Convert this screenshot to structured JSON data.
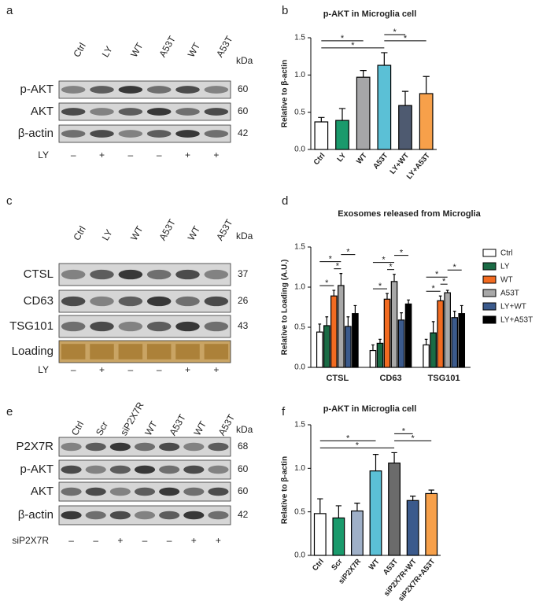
{
  "panel_labels": [
    "a",
    "b",
    "c",
    "d",
    "e",
    "f"
  ],
  "blots": [
    {
      "lanes": [
        "Ctrl",
        "LY",
        "WT",
        "A53T",
        "WT",
        "A53T"
      ],
      "kda_header": "kDa",
      "rows": [
        {
          "label": "p-AKT",
          "kda": 60
        },
        {
          "label": "AKT",
          "kda": 60
        },
        {
          "label": "β-actin",
          "kda": 42
        }
      ],
      "treatment": {
        "label": "LY",
        "signs": [
          "–",
          "+",
          "–",
          "–",
          "+",
          "+"
        ]
      }
    },
    {
      "lanes": [
        "Ctrl",
        "LY",
        "WT",
        "A53T",
        "WT",
        "A53T"
      ],
      "kda_header": "kDa",
      "rows": [
        {
          "label": "CTSL",
          "kda": 37
        },
        {
          "label": "CD63",
          "kda": 26
        },
        {
          "label": "TSG101",
          "kda": 43
        },
        {
          "label": "Loading"
        }
      ],
      "treatment": {
        "label": "LY",
        "signs": [
          "–",
          "+",
          "–",
          "–",
          "+",
          "+"
        ]
      }
    },
    {
      "lanes": [
        "Ctrl",
        "Scr",
        "siP2X7R",
        "WT",
        "A53T",
        "WT",
        "A53T"
      ],
      "kda_header": "kDa",
      "rows": [
        {
          "label": "P2X7R",
          "kda": 68
        },
        {
          "label": "p-AKT",
          "kda": 60
        },
        {
          "label": "AKT",
          "kda": 60
        },
        {
          "label": "β-actin",
          "kda": 42
        }
      ],
      "treatment": {
        "label": "siP2X7R",
        "signs": [
          "–",
          "–",
          "+",
          "–",
          "–",
          "+",
          "+"
        ]
      }
    }
  ],
  "chart_data": [
    {
      "type": "bar",
      "title": "p-AKT  in Microglia cell",
      "y_label": "Relative to β-actin",
      "categories": [
        "Ctrl",
        "LY",
        "WT",
        "A53T",
        "LY+WT",
        "LY+A53T"
      ],
      "values": [
        0.37,
        0.39,
        0.97,
        1.13,
        0.59,
        0.75
      ],
      "errors": [
        0.06,
        0.16,
        0.09,
        0.17,
        0.19,
        0.23
      ],
      "colors": [
        "#ffffff",
        "#1a9a6c",
        "#a6a6a8",
        "#5bc0d6",
        "#4e5a70",
        "#f7a04a"
      ],
      "ylim": [
        0,
        1.5
      ],
      "yticks": [
        {
          "value": 0,
          "label": "0.0"
        },
        0.5,
        {
          "value": 1,
          "label": "1.0"
        },
        1.5
      ],
      "comparisons": [
        {
          "pair": [
            "Ctrl",
            "A53T"
          ],
          "label": "*"
        },
        {
          "pair": [
            "A53T",
            "LY+A53T"
          ],
          "label": "*"
        },
        {
          "pair": [
            "Ctrl",
            "WT"
          ],
          "label": "*"
        },
        {
          "pair": [
            "A53T",
            "LY+WT"
          ],
          "label": "*"
        }
      ]
    },
    {
      "type": "grouped_bar",
      "title": "Exosomes released from Microglia",
      "y_label": "Relative to Loading (A.U.)",
      "categories": [
        "CTSL",
        "CD63",
        "TSG101"
      ],
      "series": [
        {
          "name": "Ctrl",
          "color": "#ffffff",
          "values": [
            0.44,
            0.21,
            0.28
          ],
          "errors": [
            0.1,
            0.07,
            0.07
          ]
        },
        {
          "name": "LY",
          "color": "#1a6b45",
          "values": [
            0.52,
            0.3,
            0.43
          ],
          "errors": [
            0.11,
            0.05,
            0.14
          ]
        },
        {
          "name": "WT",
          "color": "#f26b21",
          "values": [
            0.89,
            0.85,
            0.83
          ],
          "errors": [
            0.07,
            0.07,
            0.06
          ]
        },
        {
          "name": "A53T",
          "color": "#a8a8a8",
          "values": [
            1.02,
            1.07,
            0.93
          ],
          "errors": [
            0.15,
            0.09,
            0.03
          ]
        },
        {
          "name": "LY+WT",
          "color": "#3b5a8c",
          "values": [
            0.51,
            0.59,
            0.62
          ],
          "errors": [
            0.12,
            0.09,
            0.08
          ]
        },
        {
          "name": "LY+A53T",
          "color": "#000000",
          "values": [
            0.67,
            0.79,
            0.67
          ],
          "errors": [
            0.1,
            0.05,
            0.1
          ]
        }
      ],
      "ylim": [
        0,
        1.5
      ],
      "yticks": [
        {
          "value": 0,
          "label": "0.0"
        },
        0.5,
        {
          "value": 1,
          "label": "1.0"
        },
        1.5
      ],
      "comparisons": [
        [
          {
            "pair": [
              "Ctrl",
              "WT"
            ],
            "label": "*"
          },
          {
            "pair": [
              "WT",
              "A53T"
            ],
            "label": "*"
          },
          {
            "pair": [
              "Ctrl",
              "A53T"
            ],
            "label": "*"
          },
          {
            "pair": [
              "A53T",
              "LY+A53T"
            ],
            "label": "*"
          }
        ],
        [
          {
            "pair": [
              "Ctrl",
              "WT"
            ],
            "label": "*"
          },
          {
            "pair": [
              "WT",
              "A53T"
            ],
            "label": "*"
          },
          {
            "pair": [
              "Ctrl",
              "A53T"
            ],
            "label": "*"
          },
          {
            "pair": [
              "A53T",
              "LY+A53T"
            ],
            "label": "*"
          }
        ],
        [
          {
            "pair": [
              "Ctrl",
              "WT"
            ],
            "label": "*"
          },
          {
            "pair": [
              "WT",
              "A53T"
            ],
            "label": "*"
          },
          {
            "pair": [
              "Ctrl",
              "A53T"
            ],
            "label": "*"
          },
          {
            "pair": [
              "A53T",
              "LY+A53T"
            ],
            "label": "*"
          }
        ]
      ]
    },
    {
      "type": "bar",
      "title": "p-AKT  in Microglia cell",
      "y_label": "Relative to β-actin",
      "categories": [
        "Ctrl",
        "Scr",
        "siP2X7R",
        "WT",
        "A53T",
        "siP2X7R+WT",
        "siP2X7R+A53T"
      ],
      "values": [
        0.48,
        0.43,
        0.51,
        0.97,
        1.06,
        0.63,
        0.71
      ],
      "errors": [
        0.17,
        0.14,
        0.09,
        0.19,
        0.12,
        0.05,
        0.04
      ],
      "colors": [
        "#ffffff",
        "#1a9a6c",
        "#9fb0c8",
        "#5bc0d6",
        "#6b6b6b",
        "#3b5a8c",
        "#f7a04a"
      ],
      "ylim": [
        0,
        1.5
      ],
      "yticks": [
        {
          "value": 0,
          "label": "0.0"
        },
        0.5,
        {
          "value": 1,
          "label": "1.0"
        },
        1.5
      ],
      "comparisons": [
        {
          "pair": [
            "Ctrl",
            "A53T"
          ],
          "label": "*"
        },
        {
          "pair": [
            "A53T",
            "siP2X7R+A53T"
          ],
          "label": "*"
        },
        {
          "pair": [
            "Ctrl",
            "WT"
          ],
          "label": "*"
        },
        {
          "pair": [
            "A53T",
            "siP2X7R+WT"
          ],
          "label": "*"
        }
      ]
    }
  ]
}
